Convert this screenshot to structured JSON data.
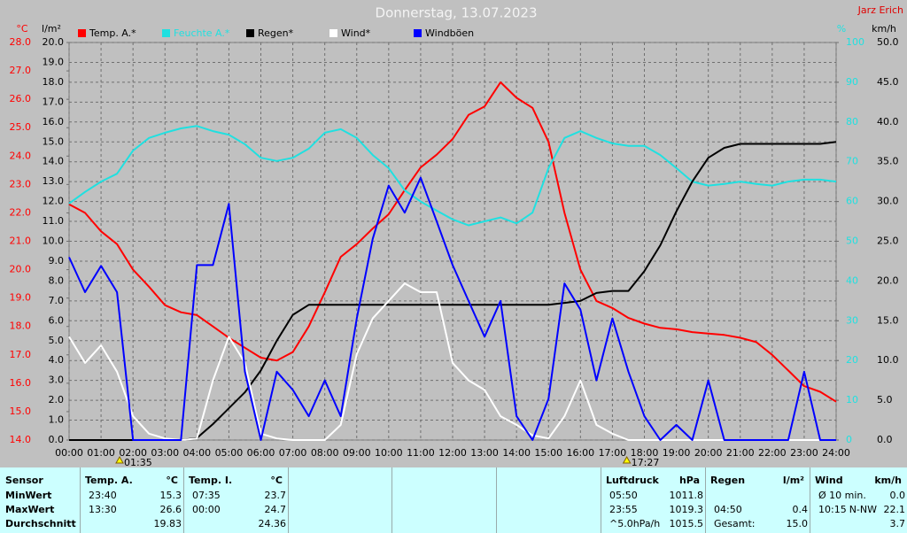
{
  "chart_data": {
    "type": "line",
    "title": "Donnerstag, 13.07.2023",
    "author": "Jarz Erich",
    "ylabel": "°C",
    "y2label": "l/m²",
    "y3label": "%",
    "y4label": "km/h",
    "xlim": [
      0,
      24
    ],
    "xticks": [
      {
        "value": 0,
        "label": "00:00"
      },
      {
        "value": 1,
        "label": "01:00"
      },
      {
        "value": 2,
        "label": "02:00"
      },
      {
        "value": 3,
        "label": "03:00"
      },
      {
        "value": 4,
        "label": "04:00"
      },
      {
        "value": 5,
        "label": "05:00"
      },
      {
        "value": 6,
        "label": "06:00"
      },
      {
        "value": 7,
        "label": "07:00"
      },
      {
        "value": 8,
        "label": "08:00"
      },
      {
        "value": 9,
        "label": "09:00"
      },
      {
        "value": 10,
        "label": "10:00"
      },
      {
        "value": 11,
        "label": "11:00"
      },
      {
        "value": 12,
        "label": "12:00"
      },
      {
        "value": 13,
        "label": "13:00"
      },
      {
        "value": 14,
        "label": "14:00"
      },
      {
        "value": 15,
        "label": "15:00"
      },
      {
        "value": 16,
        "label": "16:00"
      },
      {
        "value": 17,
        "label": "17:00"
      },
      {
        "value": 18,
        "label": "18:00"
      },
      {
        "value": 19,
        "label": "19:00"
      },
      {
        "value": 20,
        "label": "20:00"
      },
      {
        "value": 21,
        "label": "21:00"
      },
      {
        "value": 22,
        "label": "22:00"
      },
      {
        "value": 23,
        "label": "23:00"
      },
      {
        "value": 24,
        "label": "24:00"
      }
    ],
    "ylim": [
      14,
      28
    ],
    "yticks": [
      {
        "value": 14,
        "label": "14.0"
      },
      {
        "value": 15,
        "label": "15.0"
      },
      {
        "value": 16,
        "label": "16.0"
      },
      {
        "value": 17,
        "label": "17.0"
      },
      {
        "value": 18,
        "label": "18.0"
      },
      {
        "value": 19,
        "label": "19.0"
      },
      {
        "value": 20,
        "label": "20.0"
      },
      {
        "value": 21,
        "label": "21.0"
      },
      {
        "value": 22,
        "label": "22.0"
      },
      {
        "value": 23,
        "label": "23.0"
      },
      {
        "value": 24,
        "label": "24.0"
      },
      {
        "value": 25,
        "label": "25.0"
      },
      {
        "value": 26,
        "label": "26.0"
      },
      {
        "value": 27,
        "label": "27.0"
      },
      {
        "value": 28,
        "label": "28.0"
      }
    ],
    "y2lim": [
      0,
      20
    ],
    "y2ticks": [
      {
        "value": 0,
        "label": "0.0"
      },
      {
        "value": 1,
        "label": "1.0"
      },
      {
        "value": 2,
        "label": "2.0"
      },
      {
        "value": 3,
        "label": "3.0"
      },
      {
        "value": 4,
        "label": "4.0"
      },
      {
        "value": 5,
        "label": "5.0"
      },
      {
        "value": 6,
        "label": "6.0"
      },
      {
        "value": 7,
        "label": "7.0"
      },
      {
        "value": 8,
        "label": "8.0"
      },
      {
        "value": 9,
        "label": "9.0"
      },
      {
        "value": 10,
        "label": "10.0"
      },
      {
        "value": 11,
        "label": "11.0"
      },
      {
        "value": 12,
        "label": "12.0"
      },
      {
        "value": 13,
        "label": "13.0"
      },
      {
        "value": 14,
        "label": "14.0"
      },
      {
        "value": 15,
        "label": "15.0"
      },
      {
        "value": 16,
        "label": "16.0"
      },
      {
        "value": 17,
        "label": "17.0"
      },
      {
        "value": 18,
        "label": "18.0"
      },
      {
        "value": 19,
        "label": "19.0"
      },
      {
        "value": 20,
        "label": "20.0"
      }
    ],
    "y3lim": [
      0,
      100
    ],
    "y3ticks": [
      0,
      10,
      20,
      30,
      40,
      50,
      60,
      70,
      80,
      90,
      100
    ],
    "y4lim": [
      0,
      50
    ],
    "y4ticks": [
      {
        "value": 0,
        "label": "0.0"
      },
      {
        "value": 5,
        "label": "5.0"
      },
      {
        "value": 10,
        "label": "10.0"
      },
      {
        "value": 15,
        "label": "15.0"
      },
      {
        "value": 20,
        "label": "20.0"
      },
      {
        "value": 25,
        "label": "25.0"
      },
      {
        "value": 30,
        "label": "30.0"
      },
      {
        "value": 35,
        "label": "35.0"
      },
      {
        "value": 40,
        "label": "40.0"
      },
      {
        "value": 45,
        "label": "45.0"
      },
      {
        "value": 50,
        "label": "50.0"
      }
    ],
    "grid": true,
    "x": [
      0,
      0.5,
      1,
      1.5,
      2,
      2.5,
      3,
      3.5,
      4,
      4.5,
      5,
      5.5,
      6,
      6.5,
      7,
      7.5,
      8,
      8.5,
      9,
      9.5,
      10,
      10.5,
      11,
      11.5,
      12,
      12.5,
      13,
      13.5,
      14,
      14.5,
      15,
      15.5,
      16,
      16.5,
      17,
      17.5,
      18,
      18.5,
      19,
      19.5,
      20,
      20.5,
      21,
      21.5,
      22,
      22.5,
      23,
      23.5,
      24
    ],
    "series": [
      {
        "name": "Temp. A.*",
        "color": "#ff0000",
        "axis": "y",
        "values": [
          22.3,
          22.0,
          21.35,
          20.9,
          20.0,
          19.4,
          18.75,
          18.5,
          18.4,
          18.0,
          17.6,
          17.25,
          16.9,
          16.8,
          17.1,
          18.0,
          19.2,
          20.45,
          20.9,
          21.45,
          21.95,
          22.8,
          23.6,
          24.05,
          24.6,
          25.45,
          25.75,
          26.6,
          26.05,
          25.7,
          24.5,
          22.0,
          20.0,
          18.9,
          18.65,
          18.3,
          18.1,
          17.95,
          17.9,
          17.8,
          17.75,
          17.7,
          17.6,
          17.45,
          17.0,
          16.45,
          15.9,
          15.7,
          15.35
        ]
      },
      {
        "name": "Feuchte A.*",
        "color": "#20e0e0",
        "axis": "y3",
        "values": [
          59.5,
          62.4,
          65,
          67,
          72.8,
          76,
          77.3,
          78.4,
          79,
          77.7,
          76.8,
          74.4,
          71,
          70.2,
          71,
          73.3,
          77.3,
          78.2,
          76,
          71.7,
          68.4,
          62.8,
          60,
          57.7,
          55.5,
          54,
          55,
          56,
          54.5,
          57.2,
          68.4,
          76,
          77.7,
          76,
          74.6,
          74,
          74,
          71.7,
          68.4,
          65,
          64,
          64.4,
          65,
          64.4,
          64,
          65,
          65.5,
          65.5,
          65
        ]
      },
      {
        "name": "Regen*",
        "color": "#000000",
        "axis": "y2",
        "values": [
          0,
          0,
          0,
          0,
          0,
          0,
          0,
          0,
          0.1,
          0.8,
          1.6,
          2.4,
          3.5,
          5.0,
          6.3,
          6.8,
          6.8,
          6.8,
          6.8,
          6.8,
          6.8,
          6.8,
          6.8,
          6.8,
          6.8,
          6.8,
          6.8,
          6.8,
          6.8,
          6.8,
          6.8,
          6.9,
          7.0,
          7.4,
          7.5,
          7.5,
          8.5,
          9.8,
          11.5,
          13.0,
          14.2,
          14.7,
          14.9,
          14.9,
          14.9,
          14.9,
          14.9,
          14.9,
          15.0
        ]
      },
      {
        "name": "Wind*",
        "color": "#ffffff",
        "axis": "y4",
        "values": [
          13,
          9.7,
          11.9,
          8.6,
          3,
          0.8,
          0.2,
          0,
          0.2,
          7.5,
          13,
          9.7,
          0.8,
          0.2,
          0,
          0,
          0,
          1.9,
          10.8,
          15.3,
          17.5,
          19.7,
          18.6,
          18.6,
          9.7,
          7.5,
          6.3,
          3,
          1.9,
          0.6,
          0.2,
          3,
          7.5,
          1.9,
          0.8,
          0,
          0,
          0,
          0,
          0,
          0,
          0,
          0,
          0,
          0,
          0,
          0,
          0,
          0
        ]
      },
      {
        "name": "Windböen",
        "color": "#0000ff",
        "axis": "y4",
        "values": [
          23,
          18.6,
          21.9,
          18.6,
          0,
          0,
          0,
          0,
          22,
          22,
          29.7,
          8.6,
          0,
          8.6,
          6.3,
          3,
          7.5,
          3,
          15.3,
          25.3,
          32,
          28.6,
          33,
          27.5,
          22,
          17.5,
          13,
          17.5,
          3,
          0,
          5.2,
          19.7,
          16.4,
          7.5,
          15.3,
          8.6,
          3,
          0,
          1.9,
          0,
          7.5,
          0,
          0,
          0,
          0,
          0,
          8.6,
          0,
          0
        ]
      }
    ],
    "annotations": [
      {
        "x": 1.58,
        "label": "01:35"
      },
      {
        "x": 17.45,
        "label": "17:27"
      }
    ]
  },
  "table": {
    "row_labels": [
      "Sensor",
      "MinWert",
      "MaxWert",
      "Durchschnitt"
    ],
    "panels": [
      {
        "title": "Temp. A.",
        "unit": "°C",
        "rows": [
          [
            "23:40",
            "15.3"
          ],
          [
            "13:30",
            "26.6"
          ],
          [
            null,
            "19.83"
          ]
        ]
      },
      {
        "title": "Temp. I.",
        "unit": "°C",
        "rows": [
          [
            "07:35",
            "23.7"
          ],
          [
            "00:00",
            "24.7"
          ],
          [
            null,
            "24.36"
          ]
        ]
      },
      {
        "title": "Luftdruck",
        "unit": "hPa",
        "rows": [
          [
            "05:50",
            "1011.8"
          ],
          [
            "23:55",
            "1019.3"
          ],
          [
            "^5.0hPa/h",
            "1015.5"
          ]
        ]
      },
      {
        "title": "Regen",
        "unit": "l/m²",
        "rows": [
          [
            null,
            null
          ],
          [
            "04:50",
            "0.4"
          ],
          [
            "Gesamt:",
            "15.0"
          ]
        ]
      },
      {
        "title": "Wind",
        "unit": "km/h",
        "rows": [
          [
            "Ø 10 min.",
            "0.0"
          ],
          [
            "10:15",
            "N-NW",
            "22.1"
          ],
          [
            null,
            "3.7"
          ]
        ]
      }
    ]
  }
}
